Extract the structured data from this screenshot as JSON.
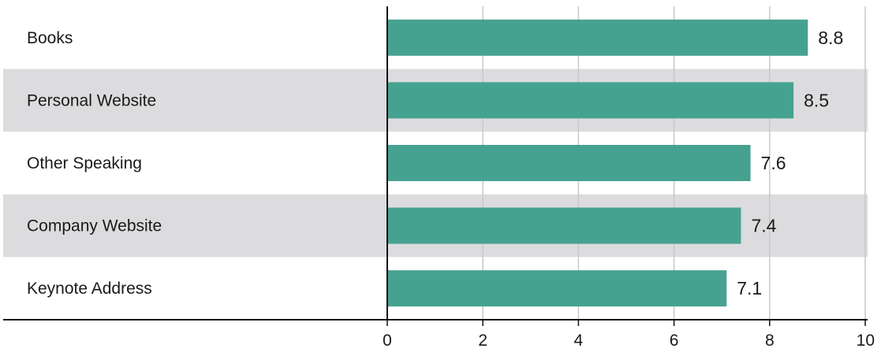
{
  "chart_data": {
    "type": "bar",
    "orientation": "horizontal",
    "categories": [
      "Books",
      "Personal Website",
      "Other Speaking",
      "Company Website",
      "Keynote Address"
    ],
    "values": [
      8.8,
      8.5,
      7.6,
      7.4,
      7.1
    ],
    "value_labels": [
      "8.8",
      "8.5",
      "7.6",
      "7.4",
      "7.1"
    ],
    "xlim": [
      0,
      10
    ],
    "xticks": [
      0,
      2,
      4,
      6,
      8,
      10
    ],
    "xtick_labels": [
      "0",
      "2",
      "4",
      "6",
      "8",
      "10"
    ],
    "title": "",
    "xlabel": "",
    "ylabel": "",
    "grid": "vertical",
    "legend": "none",
    "colors": {
      "bar": "#46a290",
      "row_band": "#dcdcde",
      "grid": "#c8c8c8",
      "axis": "#111111",
      "text": "#1a1a1a"
    }
  }
}
